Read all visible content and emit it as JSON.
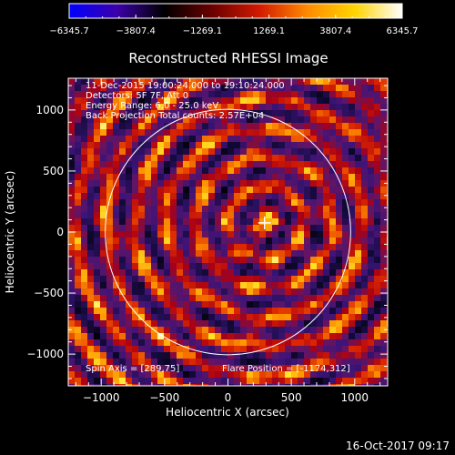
{
  "colorbar": {
    "ticks": [
      "−6345.7",
      "−3807.4",
      "−1269.1",
      "1269.1",
      "3807.4",
      "6345.7"
    ],
    "gradient": [
      "#0000ff",
      "#3c00aa",
      "#000000",
      "#6a0000",
      "#d21a00",
      "#ff8a00",
      "#ffd400",
      "#ffffff"
    ]
  },
  "chart_data": {
    "type": "heatmap",
    "title": "Reconstructed RHESSI Image",
    "xlabel": "Heliocentric X (arcsec)",
    "ylabel": "Heliocentric Y (arcsec)",
    "xlim": [
      -1260,
      1260
    ],
    "ylim": [
      -1260,
      1260
    ],
    "xticks": [
      -1000,
      -500,
      0,
      500,
      1000
    ],
    "yticks": [
      -1000,
      -500,
      0,
      500,
      1000
    ],
    "xtick_labels": [
      "−1000",
      "−500",
      "0",
      "500",
      "1000"
    ],
    "ytick_labels": [
      "−1000",
      "−500",
      "0",
      "500",
      "1000"
    ],
    "solar_limb_radius": 968,
    "flare_marker": [
      289,
      75
    ],
    "value_range": [
      -6345.7,
      6345.7
    ],
    "grid": false,
    "annotations": {
      "time_range": "11-Dec-2015 19:00:24.000 to 19:10:24.000",
      "detectors": "Detectors: 5F 7F, Att 0",
      "energy": "Energy Range: 6.0 - 25.0 keV",
      "method": "Back Projection   Total counts: 2.57E+04",
      "spin_axis": "Spin Axis = [289,75]",
      "flare_position": "Flare Position = [-1174,312]"
    }
  },
  "footer": {
    "timestamp": "16-Oct-2017 09:17"
  }
}
